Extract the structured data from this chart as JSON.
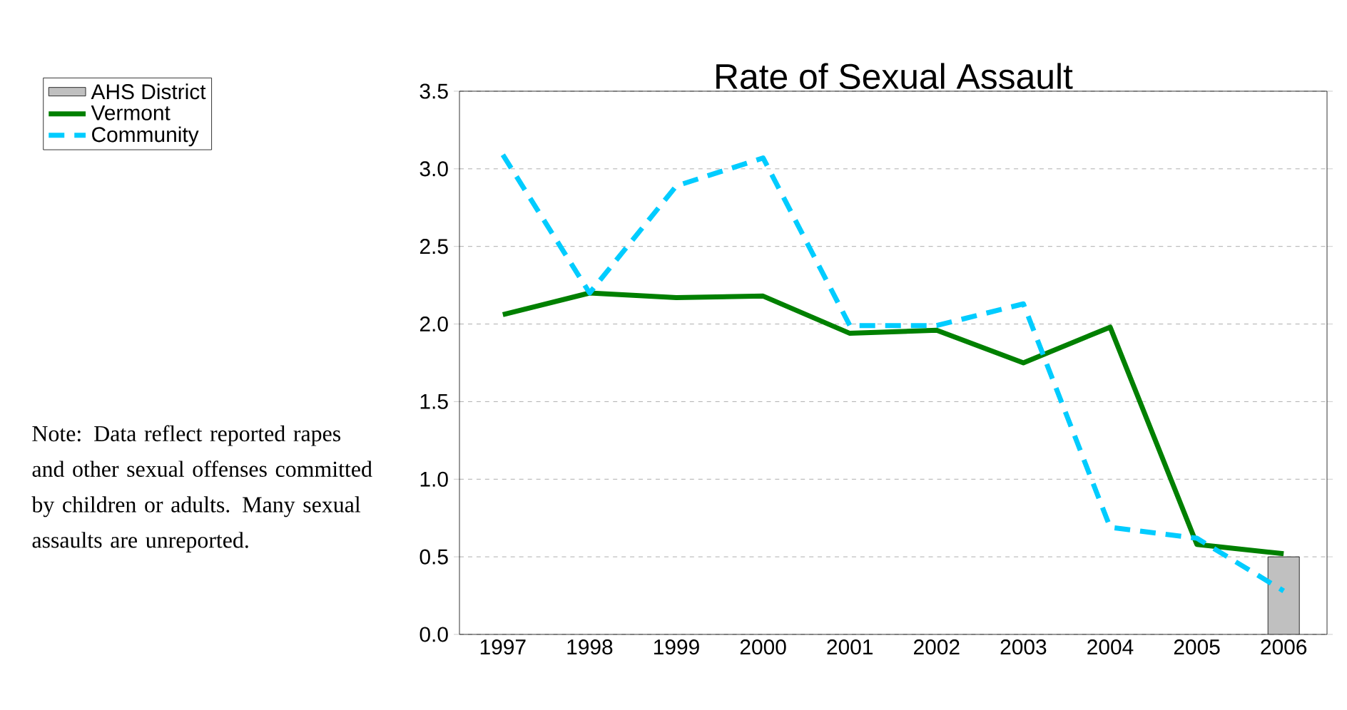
{
  "chart_data": {
    "type": "line",
    "title": "Rate of Sexual Assault",
    "categories": [
      "1997",
      "1998",
      "1999",
      "2000",
      "2001",
      "2002",
      "2003",
      "2004",
      "2005",
      "2006"
    ],
    "series": [
      {
        "name": "AHS District",
        "type": "bar",
        "color": "#c0c0c0",
        "values": [
          null,
          null,
          null,
          null,
          null,
          null,
          null,
          null,
          null,
          0.5
        ]
      },
      {
        "name": "Vermont",
        "color": "#008000",
        "line_style": "solid",
        "values": [
          2.06,
          2.2,
          2.17,
          2.18,
          1.94,
          1.96,
          1.75,
          1.98,
          0.58,
          0.52
        ]
      },
      {
        "name": "Community",
        "color": "#00ccff",
        "line_style": "dashed",
        "values": [
          3.09,
          2.2,
          2.89,
          3.07,
          1.99,
          1.99,
          2.13,
          0.69,
          0.62,
          0.28
        ]
      }
    ],
    "ylim": [
      0,
      3.5
    ],
    "yticks": [
      {
        "value": 0,
        "label": "0.0"
      },
      {
        "value": 0.5,
        "label": "0.5"
      },
      {
        "value": 1,
        "label": "1.0"
      },
      {
        "value": 1.5,
        "label": "1.5"
      },
      {
        "value": 2,
        "label": "2.0"
      },
      {
        "value": 2.5,
        "label": "2.5"
      },
      {
        "value": 3,
        "label": "3.0"
      },
      {
        "value": 3.5,
        "label": "3.5"
      }
    ],
    "grid": "y",
    "legend": "top left",
    "marker": "none",
    "annotations": [
      "Note: Data reflect reported rapes and other sexual offenses committed by children or adults.  Many sexual assaults are unreported."
    ]
  }
}
